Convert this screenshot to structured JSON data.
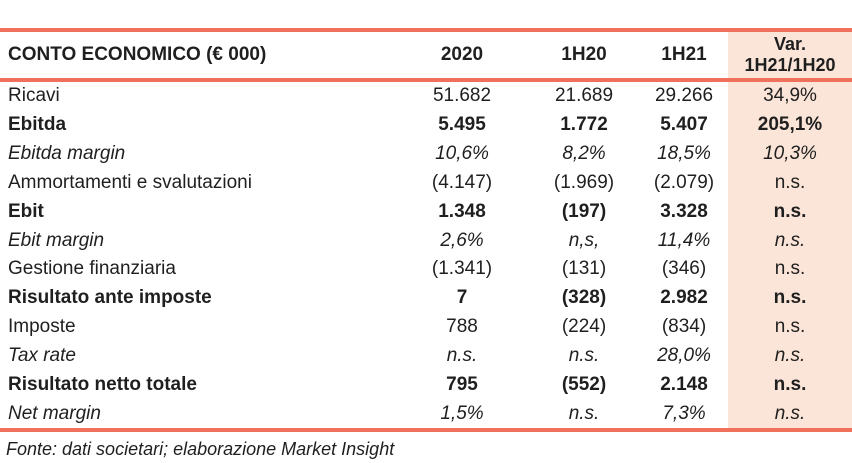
{
  "chart_data": {
    "type": "table",
    "title": "CONTO ECONOMICO (€ 000)",
    "columns": [
      "CONTO ECONOMICO (€ 000)",
      "2020",
      "1H20",
      "1H21",
      "Var. 1H21/1H20"
    ],
    "rows": [
      {
        "label": "Ricavi",
        "style": "regular",
        "values": [
          "51.682",
          "21.689",
          "29.266",
          "34,9%"
        ]
      },
      {
        "label": "Ebitda",
        "style": "bold",
        "values": [
          "5.495",
          "1.772",
          "5.407",
          "205,1%"
        ]
      },
      {
        "label": "Ebitda margin",
        "style": "italic",
        "values": [
          "10,6%",
          "8,2%",
          "18,5%",
          "10,3%"
        ]
      },
      {
        "label": "Ammortamenti e svalutazioni",
        "style": "regular",
        "values": [
          "(4.147)",
          "(1.969)",
          "(2.079)",
          "n.s."
        ]
      },
      {
        "label": "Ebit",
        "style": "bold",
        "values": [
          "1.348",
          "(197)",
          "3.328",
          "n.s."
        ]
      },
      {
        "label": "Ebit margin",
        "style": "italic",
        "values": [
          "2,6%",
          "n,s,",
          "11,4%",
          "n.s."
        ]
      },
      {
        "label": "Gestione finanziaria",
        "style": "regular",
        "values": [
          "(1.341)",
          "(131)",
          "(346)",
          "n.s."
        ]
      },
      {
        "label": "Risultato ante imposte",
        "style": "bold",
        "values": [
          "7",
          "(328)",
          "2.982",
          "n.s."
        ]
      },
      {
        "label": "Imposte",
        "style": "regular",
        "values": [
          "788",
          "(224)",
          "(834)",
          "n.s."
        ]
      },
      {
        "label": "Tax rate",
        "style": "italic",
        "values": [
          "n.s.",
          "n.s.",
          "28,0%",
          "n.s."
        ]
      },
      {
        "label": "Risultato netto totale",
        "style": "bold",
        "values": [
          "795",
          "(552)",
          "2.148",
          "n.s."
        ]
      },
      {
        "label": "Net margin",
        "style": "italic",
        "values": [
          "1,5%",
          "n.s.",
          "7,3%",
          "n.s."
        ]
      }
    ],
    "source_note": "Fonte: dati societari; elaborazione Market Insight"
  },
  "header": {
    "title": "CONTO ECONOMICO (€ 000)",
    "col_2020": "2020",
    "col_1h20": "1H20",
    "col_1h21": "1H21",
    "var_line1": "Var.",
    "var_line2": "1H21/1H20"
  },
  "footer": {
    "source_note": "Fonte: dati societari; elaborazione Market Insight"
  },
  "colors": {
    "accent_line": "#EF705B",
    "var_column_bg": "#FBE5D8",
    "text": "#1F1F1F"
  }
}
